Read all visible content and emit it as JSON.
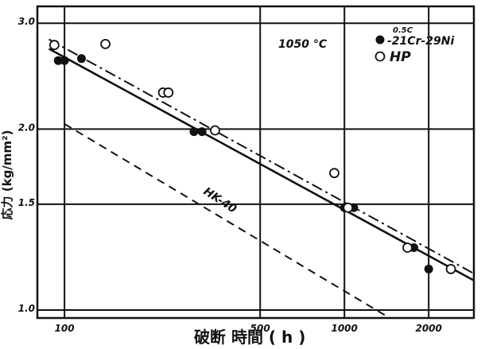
{
  "chart_data": {
    "type": "scatter",
    "x_scale": "log",
    "y_scale": "log",
    "xlabel": "破断 時間 ( h )",
    "ylabel": "応力 (kg/mm²)",
    "y_ticks": [
      {
        "value": 1.0,
        "label": "1.0"
      },
      {
        "value": 1.5,
        "label": "1.5"
      },
      {
        "value": 2.0,
        "label": "2.0"
      },
      {
        "value": 3.0,
        "label": "3.0"
      }
    ],
    "x_ticks": [
      {
        "value": 100,
        "label": "100"
      },
      {
        "value": 500,
        "label": "500"
      },
      {
        "value": 1000,
        "label": "1000"
      },
      {
        "value": 2000,
        "label": "2000"
      }
    ],
    "xlim": [
      80,
      2900
    ],
    "ylim": [
      0.97,
      3.2
    ],
    "grid": true,
    "annotations": {
      "temperature": "1050 °C",
      "hk40": "HK-40"
    },
    "legend": {
      "placement": "top-right",
      "entries": [
        {
          "marker": "filled",
          "label": "-21Cr-29Ni",
          "superscript": "0.5C"
        },
        {
          "marker": "open",
          "label": "HP"
        }
      ]
    },
    "series": [
      {
        "name": "-21Cr-29Ni",
        "marker": "filled",
        "points": [
          [
            95,
            2.6
          ],
          [
            100,
            2.6
          ],
          [
            115,
            2.62
          ],
          [
            290,
            1.98
          ],
          [
            310,
            1.98
          ],
          [
            1000,
            1.48
          ],
          [
            1080,
            1.48
          ],
          [
            1770,
            1.27
          ],
          [
            2000,
            1.17
          ]
        ]
      },
      {
        "name": "HP",
        "marker": "open",
        "points": [
          [
            92,
            2.76
          ],
          [
            140,
            2.77
          ],
          [
            225,
            2.3
          ],
          [
            235,
            2.3
          ],
          [
            345,
            1.99
          ],
          [
            920,
            1.69
          ],
          [
            1030,
            1.48
          ],
          [
            1680,
            1.27
          ],
          [
            2400,
            1.17
          ]
        ]
      }
    ],
    "fit_lines": [
      {
        "series": "-21Cr-29Ni",
        "style": "solid",
        "from": [
          88,
          2.72
        ],
        "to": [
          2900,
          1.12
        ]
      },
      {
        "series": "HP",
        "style": "dashdot",
        "from": [
          88,
          2.82
        ],
        "to": [
          2900,
          1.15
        ]
      },
      {
        "series": "HK-40",
        "style": "dashed",
        "from": [
          100,
          2.04
        ],
        "to": [
          1450,
          0.97
        ]
      }
    ]
  }
}
